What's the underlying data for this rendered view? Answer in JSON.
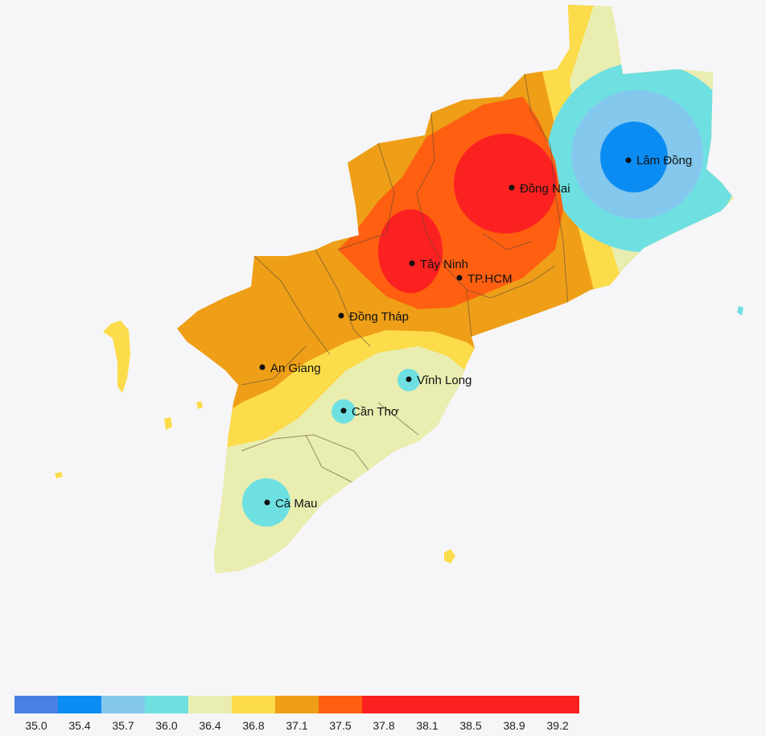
{
  "map": {
    "cities": [
      {
        "id": "lam-dong",
        "name": "Lâm Đồng",
        "value": 35.4
      },
      {
        "id": "dong-nai",
        "name": "Đồng Nai",
        "value": 38.5
      },
      {
        "id": "tay-ninh",
        "name": "Tây Ninh",
        "value": 38.5
      },
      {
        "id": "tp-hcm",
        "name": "TP.HCM",
        "value": 37.5
      },
      {
        "id": "dong-thap",
        "name": "Đồng Tháp",
        "value": 37.1
      },
      {
        "id": "an-giang",
        "name": "An Giang",
        "value": 37.1
      },
      {
        "id": "vinh-long",
        "name": "Vĩnh Long",
        "value": 36.0
      },
      {
        "id": "can-tho",
        "name": "Cần Thơ",
        "value": 36.0
      },
      {
        "id": "ca-mau",
        "name": "Cà Mau",
        "value": 36.0
      }
    ]
  },
  "legend": {
    "ticks": [
      "35.0",
      "35.4",
      "35.7",
      "36.0",
      "36.4",
      "36.8",
      "37.1",
      "37.5",
      "37.8",
      "38.1",
      "38.5",
      "38.9",
      "39.2"
    ],
    "bins": [
      {
        "label": "35.0–35.4",
        "color": "#4a80e2"
      },
      {
        "label": "35.4–35.7",
        "color": "#0b8cf2"
      },
      {
        "label": "35.7–36.0",
        "color": "#84c8ee"
      },
      {
        "label": "36.0–36.4",
        "color": "#6fe0e2"
      },
      {
        "label": "36.4–36.8",
        "color": "#e9eeb0"
      },
      {
        "label": "36.8–37.1",
        "color": "#fcdc4a"
      },
      {
        "label": "37.1–37.5",
        "color": "#ee9f17"
      },
      {
        "label": "37.5–37.8",
        "color": "#fe5f10"
      },
      {
        "label": "37.8–39.2",
        "color": "#fb2121"
      }
    ]
  },
  "colors": {
    "background": "#f6f6f9",
    "boundary": "#5a4a3a",
    "dot": "#111111"
  }
}
